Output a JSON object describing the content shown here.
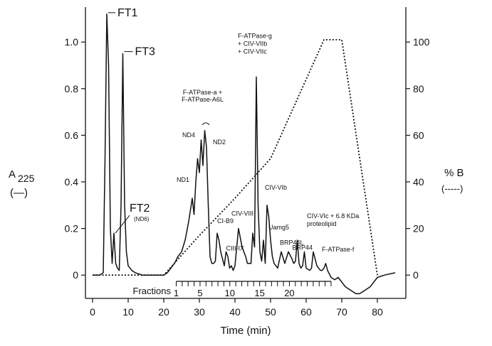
{
  "chart_data": {
    "type": "line",
    "xlabel": "Time (min)",
    "ylabel_left_main": "A",
    "ylabel_left_sub": "225",
    "ylabel_left_legend": "(—)",
    "ylabel_right_main": "% B",
    "ylabel_right_legend": "(-----)",
    "xlim": [
      -2,
      88
    ],
    "ylim_left": [
      -0.1,
      1.15
    ],
    "ylim_right": [
      -10,
      115
    ],
    "x_ticks": [
      0,
      10,
      20,
      30,
      40,
      50,
      60,
      70,
      80
    ],
    "x_tick_labels": [
      "0",
      "10",
      "20",
      "30",
      "40",
      "50",
      "60",
      "70",
      "80"
    ],
    "y_left_ticks": [
      0,
      0.2,
      0.4,
      0.6,
      0.8,
      1.0
    ],
    "y_left_tick_labels": [
      "0",
      "0.2",
      "0.4",
      "0.6",
      "0.8",
      "1.0"
    ],
    "y_right_ticks": [
      0,
      20,
      40,
      60,
      80,
      100
    ],
    "y_right_tick_labels": [
      "0",
      "20",
      "40",
      "60",
      "80",
      "100"
    ],
    "fractions": {
      "label": "Fractions",
      "x_start": 23.5,
      "x_end": 67,
      "count": 27,
      "numbers": [
        "1",
        "5",
        "10",
        "15",
        "20"
      ],
      "number_positions": [
        1,
        5,
        10,
        15,
        20
      ]
    },
    "series": [
      {
        "style": "solid",
        "axis": "left",
        "x": [
          0,
          2,
          3,
          3.5,
          4,
          4.5,
          5,
          5.5,
          6,
          6.5,
          7,
          7.5,
          8,
          8.5,
          9,
          9.5,
          10,
          11,
          12,
          14,
          16,
          18,
          20,
          21,
          22,
          23,
          24,
          25,
          26,
          27,
          28,
          28.5,
          29,
          29.5,
          30,
          30.5,
          31,
          31.5,
          32,
          32.5,
          33,
          33.5,
          34,
          34.5,
          35,
          35.5,
          36,
          37,
          37.5,
          38,
          38.5,
          39,
          39.5,
          40,
          41,
          42,
          43,
          43.5,
          44,
          44.5,
          45,
          45.5,
          46,
          46.5,
          47,
          47.5,
          48,
          48.5,
          49,
          49.5,
          50,
          50.5,
          51,
          52,
          53,
          54,
          55,
          56,
          56.5,
          57,
          57.5,
          58,
          58.5,
          59,
          59.5,
          60,
          61,
          61.5,
          62,
          63,
          64,
          64.5,
          65,
          65.5,
          66,
          67,
          68,
          69,
          70,
          71,
          72,
          73,
          74,
          75,
          76,
          78,
          80,
          82,
          85
        ],
        "y": [
          0,
          0,
          0.01,
          0.5,
          1.12,
          0.9,
          0.2,
          0.05,
          0.18,
          0.05,
          0.03,
          0.02,
          0.3,
          0.95,
          0.3,
          0.1,
          0.04,
          0.02,
          0.01,
          0,
          0,
          0,
          0,
          0.01,
          0.03,
          0.05,
          0.08,
          0.1,
          0.15,
          0.23,
          0.33,
          0.26,
          0.4,
          0.5,
          0.44,
          0.58,
          0.47,
          0.62,
          0.55,
          0.3,
          0.08,
          0.05,
          0.05,
          0.06,
          0.18,
          0.15,
          0.1,
          0.04,
          0.1,
          0.08,
          0.03,
          0.04,
          0.02,
          0.04,
          0.2,
          0.12,
          0.08,
          0.05,
          0.05,
          0.05,
          0.18,
          0.12,
          0.85,
          0.3,
          0.1,
          0.06,
          0.15,
          0.05,
          0.3,
          0.25,
          0.15,
          0.08,
          0.05,
          0.03,
          0.1,
          0.05,
          0.1,
          0.07,
          0.05,
          0.06,
          0.15,
          0.05,
          0.03,
          0.04,
          0.1,
          0.03,
          0.02,
          0.03,
          0.1,
          0.04,
          0.02,
          0.02,
          0.03,
          0.05,
          0.02,
          -0.01,
          -0.02,
          -0.01,
          -0.03,
          -0.05,
          -0.06,
          -0.07,
          -0.08,
          -0.08,
          -0.07,
          -0.05,
          -0.01,
          0,
          0.01
        ]
      },
      {
        "style": "dotted",
        "axis": "right",
        "x": [
          0,
          20,
          30,
          40,
          50,
          65,
          70,
          80
        ],
        "y": [
          0,
          0,
          17,
          33,
          50,
          101,
          101,
          0
        ]
      }
    ],
    "annotations": [
      {
        "text": "FT1",
        "x": 4,
        "y": 1.12
      },
      {
        "text": "FT3",
        "x": 8.5,
        "y": 0.95
      },
      {
        "text": "FT2",
        "x": 6,
        "y": 0.18
      },
      {
        "text": "(ND6)",
        "x": 6,
        "y": 0.18
      },
      {
        "text": "ND1",
        "x": 28,
        "y": 0.33
      },
      {
        "text": "ND4",
        "x": 30,
        "y": 0.5
      },
      {
        "text": "F-ATPase-a +",
        "x": 31.5,
        "y": 0.62
      },
      {
        "text": "F-ATPase-A6L",
        "x": 31.5,
        "y": 0.62
      },
      {
        "text": "ND2",
        "x": 32,
        "y": 0.55
      },
      {
        "text": "CI-B9",
        "x": 35,
        "y": 0.18
      },
      {
        "text": "CIII-IX",
        "x": 37.5,
        "y": 0.1
      },
      {
        "text": "CIV-VIII",
        "x": 41,
        "y": 0.2
      },
      {
        "text": "F-ATPase-g",
        "x": 46,
        "y": 0.85
      },
      {
        "text": "+ CIV-VIIb",
        "x": 46,
        "y": 0.85
      },
      {
        "text": "+ CIV-VIIc",
        "x": 46,
        "y": 0.85
      },
      {
        "text": "CIV-VIb",
        "x": 49,
        "y": 0.3
      },
      {
        "text": "Uamg5",
        "x": 50,
        "y": 0.15
      },
      {
        "text": "BRP44L",
        "x": 53,
        "y": 0.1
      },
      {
        "text": "BRP44",
        "x": 56.5,
        "y": 0.1
      },
      {
        "text": "CIV-VIc + 6.8 KDa",
        "x": 61,
        "y": 0.15
      },
      {
        "text": "proteolipid",
        "x": 61,
        "y": 0.15
      },
      {
        "text": "F-ATPase-f",
        "x": 64,
        "y": 0.05
      }
    ]
  }
}
